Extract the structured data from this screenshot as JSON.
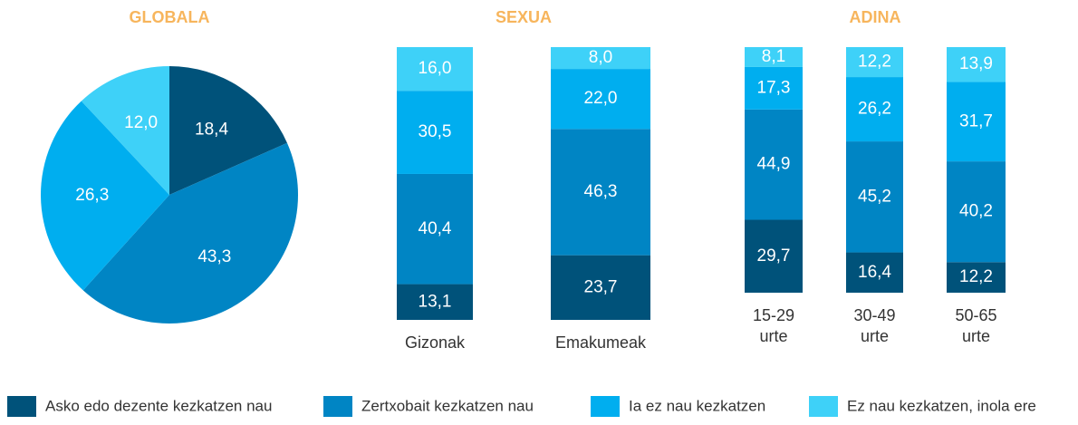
{
  "chart_data": [
    {
      "type": "pie",
      "title": "GLOBALA",
      "values": [
        18.4,
        43.3,
        26.3,
        12.0
      ],
      "value_labels": [
        "18,4",
        "43,3",
        "26,3",
        "12,0"
      ]
    },
    {
      "type": "bar",
      "stacked": true,
      "title": "SEXUA",
      "categories": [
        "Gizonak",
        "Emakumeak"
      ],
      "series": [
        {
          "values": [
            13.1,
            23.7
          ],
          "value_labels": [
            "13,1",
            "23,7"
          ]
        },
        {
          "values": [
            40.4,
            46.3
          ],
          "value_labels": [
            "40,4",
            "46,3"
          ]
        },
        {
          "values": [
            30.5,
            22.0
          ],
          "value_labels": [
            "30,5",
            "22,0"
          ]
        },
        {
          "values": [
            16.0,
            8.0
          ],
          "value_labels": [
            "16,0",
            "8,0"
          ]
        }
      ]
    },
    {
      "type": "bar",
      "stacked": true,
      "title": "ADINA",
      "categories": [
        "15-29 urte",
        "30-49 urte",
        "50-65 urte"
      ],
      "series": [
        {
          "values": [
            29.7,
            16.4,
            12.2
          ],
          "value_labels": [
            "29,7",
            "16,4",
            "12,2"
          ]
        },
        {
          "values": [
            44.9,
            45.2,
            40.2
          ],
          "value_labels": [
            "44,9",
            "45,2",
            "40,2"
          ]
        },
        {
          "values": [
            17.3,
            26.2,
            31.7
          ],
          "value_labels": [
            "17,3",
            "26,2",
            "31,7"
          ]
        },
        {
          "values": [
            8.1,
            12.2,
            13.9
          ],
          "value_labels": [
            "8,1",
            "12,2",
            "13,9"
          ]
        }
      ]
    }
  ],
  "legend": [
    {
      "name": "Asko edo dezente kezkatzen nau",
      "color": "#00527a"
    },
    {
      "name": "Zertxobait kezkatzen nau",
      "color": "#0085c4"
    },
    {
      "name": "Ia ez nau kezkatzen",
      "color": "#00aeef"
    },
    {
      "name": "Ez nau kezkatzen, inola ere",
      "color": "#3ed1f8"
    }
  ]
}
